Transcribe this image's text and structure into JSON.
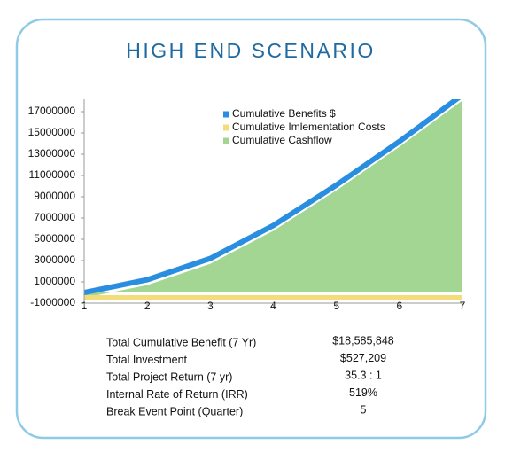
{
  "chart_data": {
    "type": "area-line",
    "title": "HIGH END SCENARIO",
    "x": [
      1,
      2,
      3,
      4,
      5,
      6,
      7
    ],
    "xlim": [
      1,
      7
    ],
    "xticks": [
      1,
      2,
      3,
      4,
      5,
      6,
      7
    ],
    "ylim": [
      -1000000,
      18000000
    ],
    "yticks": [
      -1000000,
      1000000,
      3000000,
      5000000,
      7000000,
      9000000,
      11000000,
      13000000,
      15000000,
      17000000
    ],
    "grid": false,
    "series": [
      {
        "name": "Cumulative Benefits $",
        "color": "#2a8ee0",
        "kind": "line",
        "values": [
          0,
          1200000,
          3200000,
          6300000,
          10100000,
          14200000,
          18585848
        ]
      },
      {
        "name": "Cumulative Imlementation Costs",
        "color": "#f5dc7a",
        "kind": "line",
        "values": [
          -500000,
          -500000,
          -500000,
          -500000,
          -500000,
          -500000,
          -500000
        ]
      },
      {
        "name": "Cumulative Cashflow",
        "color": "#a3d693",
        "kind": "area",
        "values": [
          -500000,
          700000,
          2700000,
          5800000,
          9600000,
          13700000,
          18058639
        ]
      }
    ]
  },
  "summary": {
    "rows": [
      [
        "Total Cumulative Benefit (7 Yr)",
        "$18,585,848"
      ],
      [
        "Total Investment",
        "$527,209"
      ],
      [
        "Total Project Return (7 yr)",
        "35.3 : 1"
      ],
      [
        "Internal Rate of Return (IRR)",
        "519%"
      ],
      [
        "Break Event Point (Quarter)",
        "5"
      ]
    ]
  }
}
